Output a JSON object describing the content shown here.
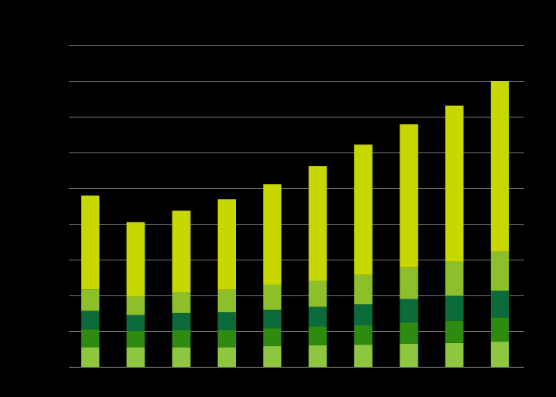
{
  "chart_data": {
    "type": "bar",
    "stacked": true,
    "grid": true,
    "categories": [
      "",
      "",
      "",
      "",
      "",
      "",
      "",
      "",
      "",
      ""
    ],
    "ylim": [
      0,
      9.6
    ],
    "yticks": [
      1,
      2,
      3,
      4,
      5,
      6,
      7,
      8,
      9
    ],
    "series": [
      {
        "color": "#8dc63f",
        "values": [
          0.55,
          0.55,
          0.55,
          0.55,
          0.58,
          0.6,
          0.62,
          0.65,
          0.67,
          0.7
        ]
      },
      {
        "color": "#2e8b0f",
        "values": [
          0.5,
          0.45,
          0.48,
          0.48,
          0.5,
          0.53,
          0.55,
          0.6,
          0.62,
          0.68
        ]
      },
      {
        "color": "#0b6b3a",
        "values": [
          0.52,
          0.45,
          0.48,
          0.5,
          0.52,
          0.55,
          0.58,
          0.65,
          0.7,
          0.75
        ]
      },
      {
        "color": "#8cbf2a",
        "values": [
          0.6,
          0.52,
          0.58,
          0.63,
          0.7,
          0.73,
          0.83,
          0.88,
          0.95,
          1.1
        ]
      },
      {
        "color": "#c7d800",
        "values": [
          2.62,
          2.08,
          2.28,
          2.53,
          2.81,
          3.21,
          3.64,
          4.01,
          4.37,
          4.77
        ]
      }
    ]
  }
}
